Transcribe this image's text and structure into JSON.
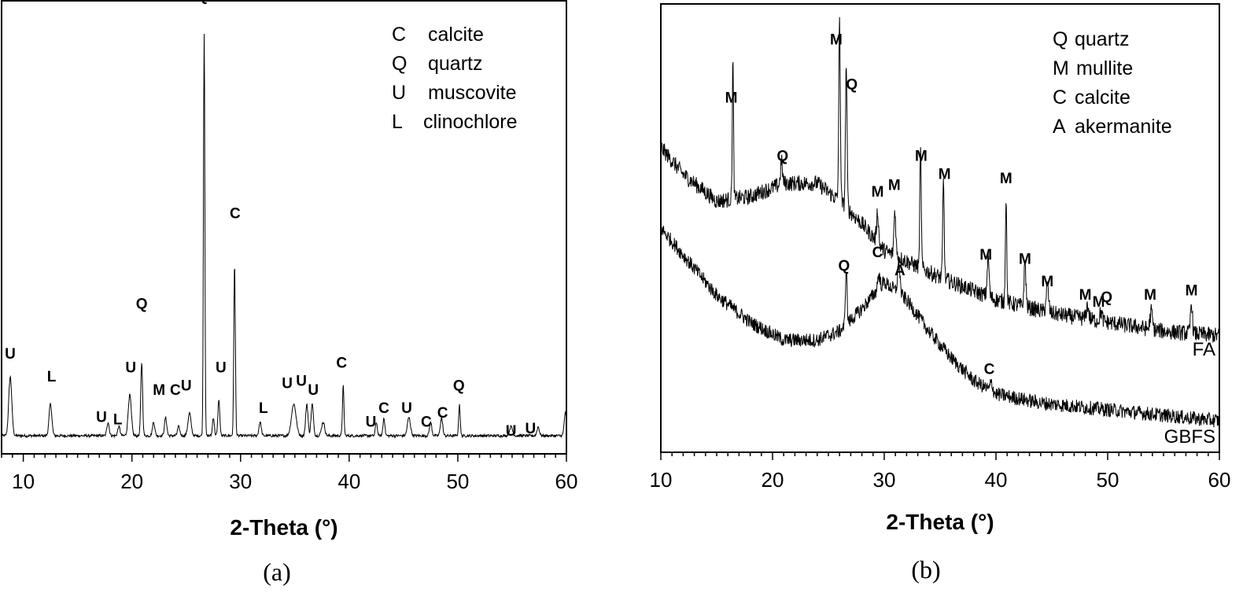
{
  "chart_data": [
    {
      "panel": "(a)",
      "type": "line",
      "xlabel": "2-Theta (°)",
      "xlim": [
        8,
        60
      ],
      "x_ticks": [
        "10",
        "20",
        "30",
        "40",
        "50",
        "60"
      ],
      "legend": [
        {
          "symbol": "C",
          "name": "calcite"
        },
        {
          "symbol": "Q",
          "name": "quartz"
        },
        {
          "symbol": "U",
          "name": "muscovite"
        },
        {
          "symbol": "L",
          "name": "clinochlore"
        }
      ],
      "baseline": 0.04,
      "peaks": [
        {
          "x": 8.8,
          "h": 0.13,
          "w": 0.2
        },
        {
          "x": 12.5,
          "h": 0.07,
          "w": 0.18
        },
        {
          "x": 17.8,
          "h": 0.03,
          "w": 0.15
        },
        {
          "x": 18.8,
          "h": 0.02,
          "w": 0.15
        },
        {
          "x": 19.8,
          "h": 0.09,
          "w": 0.2
        },
        {
          "x": 20.9,
          "h": 0.16,
          "w": 0.12
        },
        {
          "x": 22.0,
          "h": 0.03,
          "w": 0.15
        },
        {
          "x": 23.1,
          "h": 0.04,
          "w": 0.15
        },
        {
          "x": 24.3,
          "h": 0.02,
          "w": 0.15
        },
        {
          "x": 25.3,
          "h": 0.05,
          "w": 0.2
        },
        {
          "x": 26.65,
          "h": 0.89,
          "w": 0.09
        },
        {
          "x": 27.5,
          "h": 0.04,
          "w": 0.12
        },
        {
          "x": 28.0,
          "h": 0.08,
          "w": 0.12
        },
        {
          "x": 29.45,
          "h": 0.38,
          "w": 0.1
        },
        {
          "x": 31.8,
          "h": 0.03,
          "w": 0.15
        },
        {
          "x": 34.9,
          "h": 0.07,
          "w": 0.3
        },
        {
          "x": 36.1,
          "h": 0.07,
          "w": 0.15
        },
        {
          "x": 36.6,
          "h": 0.07,
          "w": 0.15
        },
        {
          "x": 37.6,
          "h": 0.03,
          "w": 0.2
        },
        {
          "x": 39.45,
          "h": 0.11,
          "w": 0.1
        },
        {
          "x": 42.5,
          "h": 0.03,
          "w": 0.12
        },
        {
          "x": 43.2,
          "h": 0.04,
          "w": 0.12
        },
        {
          "x": 45.5,
          "h": 0.04,
          "w": 0.2
        },
        {
          "x": 47.5,
          "h": 0.03,
          "w": 0.15
        },
        {
          "x": 48.5,
          "h": 0.04,
          "w": 0.15
        },
        {
          "x": 50.15,
          "h": 0.07,
          "w": 0.1
        },
        {
          "x": 54.9,
          "h": 0.02,
          "w": 0.2
        },
        {
          "x": 57.4,
          "h": 0.02,
          "w": 0.15
        },
        {
          "x": 59.9,
          "h": 0.05,
          "w": 0.15
        }
      ],
      "peak_labels": [
        {
          "text": "U",
          "x": 8.8,
          "y": 0.21
        },
        {
          "text": "L",
          "x": 12.6,
          "y": 0.16
        },
        {
          "text": "U",
          "x": 17.2,
          "y": 0.07
        },
        {
          "text": "L",
          "x": 18.7,
          "y": 0.065
        },
        {
          "text": "U",
          "x": 19.9,
          "y": 0.18
        },
        {
          "text": "Q",
          "x": 20.9,
          "y": 0.32
        },
        {
          "text": "M",
          "x": 22.5,
          "y": 0.13
        },
        {
          "text": "C",
          "x": 24.0,
          "y": 0.13
        },
        {
          "text": "U",
          "x": 25.0,
          "y": 0.14
        },
        {
          "text": "Q",
          "x": 26.5,
          "y": 1.0
        },
        {
          "text": "U",
          "x": 28.2,
          "y": 0.18
        },
        {
          "text": "C",
          "x": 29.5,
          "y": 0.52
        },
        {
          "text": "L",
          "x": 32.1,
          "y": 0.09
        },
        {
          "text": "U",
          "x": 34.3,
          "y": 0.145
        },
        {
          "text": "U",
          "x": 35.6,
          "y": 0.15
        },
        {
          "text": "U",
          "x": 36.7,
          "y": 0.13
        },
        {
          "text": "C",
          "x": 39.3,
          "y": 0.19
        },
        {
          "text": "U",
          "x": 42.0,
          "y": 0.06
        },
        {
          "text": "C",
          "x": 43.2,
          "y": 0.09
        },
        {
          "text": "U",
          "x": 45.3,
          "y": 0.09
        },
        {
          "text": "C",
          "x": 47.1,
          "y": 0.06
        },
        {
          "text": "C",
          "x": 48.6,
          "y": 0.08
        },
        {
          "text": "Q",
          "x": 50.1,
          "y": 0.14
        },
        {
          "text": "U",
          "x": 54.9,
          "y": 0.04
        },
        {
          "text": "U",
          "x": 56.7,
          "y": 0.045
        }
      ]
    },
    {
      "panel": "(b)",
      "type": "line",
      "xlabel": "2-Theta (°)",
      "xlim": [
        10,
        60
      ],
      "x_ticks": [
        "10",
        "20",
        "30",
        "40",
        "50",
        "60"
      ],
      "legend": [
        {
          "symbol": "Q",
          "name": "quartz"
        },
        {
          "symbol": "M",
          "name": "mullite"
        },
        {
          "symbol": "C",
          "name": "calcite"
        },
        {
          "symbol": "A",
          "name": "akermanite"
        }
      ],
      "series": [
        {
          "name": "FA",
          "background": [
            [
              10,
              0.68
            ],
            [
              12,
              0.62
            ],
            [
              15,
              0.56
            ],
            [
              18,
              0.57
            ],
            [
              21,
              0.6
            ],
            [
              24,
              0.6
            ],
            [
              26,
              0.56
            ],
            [
              28,
              0.51
            ],
            [
              30,
              0.45
            ],
            [
              35,
              0.39
            ],
            [
              40,
              0.34
            ],
            [
              45,
              0.31
            ],
            [
              50,
              0.29
            ],
            [
              55,
              0.27
            ],
            [
              60,
              0.26
            ]
          ],
          "noise": 0.018,
          "peaks": [
            {
              "x": 16.45,
              "h": 0.31,
              "w": 0.08
            },
            {
              "x": 20.8,
              "h": 0.05,
              "w": 0.12
            },
            {
              "x": 26.0,
              "h": 0.4,
              "w": 0.1
            },
            {
              "x": 26.6,
              "h": 0.32,
              "w": 0.1
            },
            {
              "x": 29.4,
              "h": 0.07,
              "w": 0.12
            },
            {
              "x": 30.95,
              "h": 0.1,
              "w": 0.12
            },
            {
              "x": 33.25,
              "h": 0.26,
              "w": 0.09
            },
            {
              "x": 35.3,
              "h": 0.22,
              "w": 0.09
            },
            {
              "x": 39.3,
              "h": 0.09,
              "w": 0.12
            },
            {
              "x": 40.9,
              "h": 0.23,
              "w": 0.09
            },
            {
              "x": 42.6,
              "h": 0.1,
              "w": 0.12
            },
            {
              "x": 44.6,
              "h": 0.06,
              "w": 0.15
            },
            {
              "x": 48.2,
              "h": 0.03,
              "w": 0.15
            },
            {
              "x": 49.4,
              "h": 0.02,
              "w": 0.15
            },
            {
              "x": 53.9,
              "h": 0.04,
              "w": 0.15
            },
            {
              "x": 57.5,
              "h": 0.07,
              "w": 0.12
            }
          ]
        },
        {
          "name": "GBFS",
          "background": [
            [
              10,
              0.5
            ],
            [
              12,
              0.44
            ],
            [
              15,
              0.35
            ],
            [
              18,
              0.29
            ],
            [
              21,
              0.25
            ],
            [
              24,
              0.25
            ],
            [
              26,
              0.27
            ],
            [
              28,
              0.32
            ],
            [
              30,
              0.38
            ],
            [
              32,
              0.34
            ],
            [
              34,
              0.27
            ],
            [
              36,
              0.21
            ],
            [
              38,
              0.16
            ],
            [
              40,
              0.13
            ],
            [
              44,
              0.11
            ],
            [
              48,
              0.1
            ],
            [
              52,
              0.09
            ],
            [
              56,
              0.08
            ],
            [
              60,
              0.07
            ]
          ],
          "noise": 0.016,
          "peaks": [
            {
              "x": 26.6,
              "h": 0.13,
              "w": 0.1
            },
            {
              "x": 29.5,
              "h": 0.03,
              "w": 0.15
            },
            {
              "x": 31.3,
              "h": 0.07,
              "w": 0.15
            },
            {
              "x": 39.6,
              "h": 0.02,
              "w": 0.15
            }
          ]
        }
      ],
      "peak_labels": [
        {
          "text": "M",
          "x": 16.3,
          "y": 0.78
        },
        {
          "text": "Q",
          "x": 20.9,
          "y": 0.65
        },
        {
          "text": "M",
          "x": 25.7,
          "y": 0.91
        },
        {
          "text": "Q",
          "x": 27.1,
          "y": 0.81
        },
        {
          "text": "M",
          "x": 29.4,
          "y": 0.57
        },
        {
          "text": "M",
          "x": 30.9,
          "y": 0.585
        },
        {
          "text": "M",
          "x": 33.3,
          "y": 0.65
        },
        {
          "text": "M",
          "x": 35.4,
          "y": 0.61
        },
        {
          "text": "M",
          "x": 39.1,
          "y": 0.43
        },
        {
          "text": "M",
          "x": 40.9,
          "y": 0.6
        },
        {
          "text": "M",
          "x": 42.6,
          "y": 0.42
        },
        {
          "text": "M",
          "x": 44.6,
          "y": 0.37
        },
        {
          "text": "M",
          "x": 48.0,
          "y": 0.34
        },
        {
          "text": "M",
          "x": 49.2,
          "y": 0.325
        },
        {
          "text": "Q",
          "x": 49.9,
          "y": 0.335
        },
        {
          "text": "M",
          "x": 53.8,
          "y": 0.34
        },
        {
          "text": "M",
          "x": 57.5,
          "y": 0.35
        },
        {
          "text": "Q",
          "x": 26.4,
          "y": 0.405
        },
        {
          "text": "C",
          "x": 29.4,
          "y": 0.435
        },
        {
          "text": "A",
          "x": 31.4,
          "y": 0.395
        },
        {
          "text": "C",
          "x": 39.4,
          "y": 0.175
        }
      ]
    }
  ]
}
